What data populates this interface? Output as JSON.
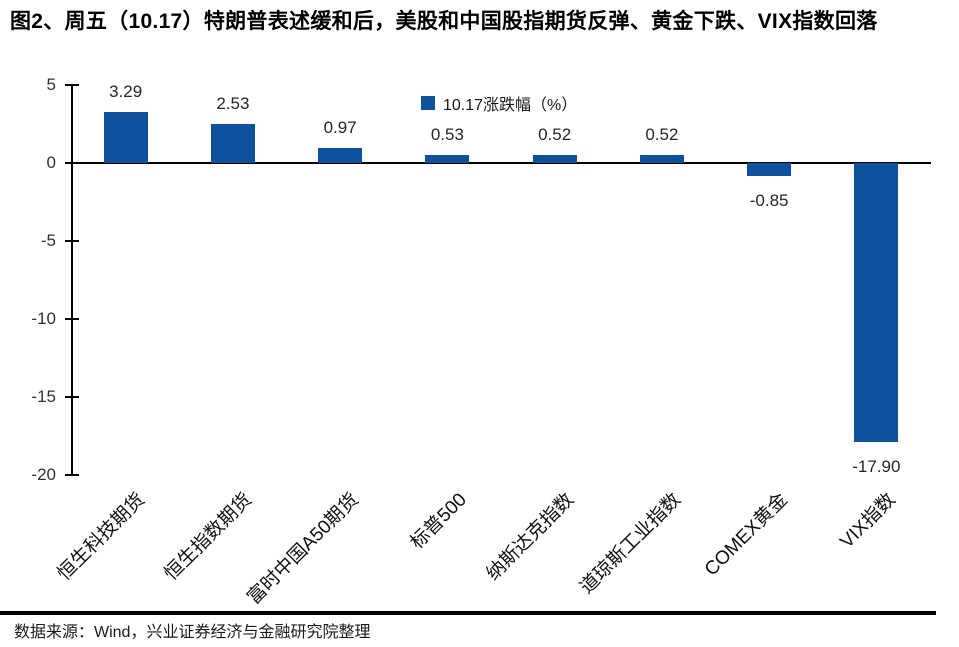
{
  "title": "图2、周五（10.17）特朗普表述缓和后，美股和中国股指期货反弹、黄金下跌、VIX指数回落",
  "source": "数据来源：Wind，兴业证券经济与金融研究院整理",
  "colors": {
    "bar": "#0E529E",
    "axis": "#000000",
    "value_label": "#262626"
  },
  "chart_data": {
    "type": "bar",
    "title": "",
    "legend": "10.17涨跌幅（%）",
    "legend_position": "top-center",
    "categories": [
      "恒生科技期货",
      "恒生指数期货",
      "富时中国A50期货",
      "标普500",
      "纳斯达克指数",
      "道琼斯工业指数",
      "COMEX黄金",
      "VIX指数"
    ],
    "values": [
      3.29,
      2.53,
      0.97,
      0.53,
      0.52,
      0.52,
      -0.85,
      -17.9
    ],
    "data_labels": [
      "3.29",
      "2.53",
      "0.97",
      "0.53",
      "0.52",
      "0.52",
      "-0.85",
      "-17.90"
    ],
    "ylim": [
      -20,
      5
    ],
    "yticks": [
      5,
      0,
      -5,
      -10,
      -15,
      -20
    ],
    "grid": false,
    "xlabel": "",
    "ylabel": "",
    "bar_color": "#0E529E"
  }
}
